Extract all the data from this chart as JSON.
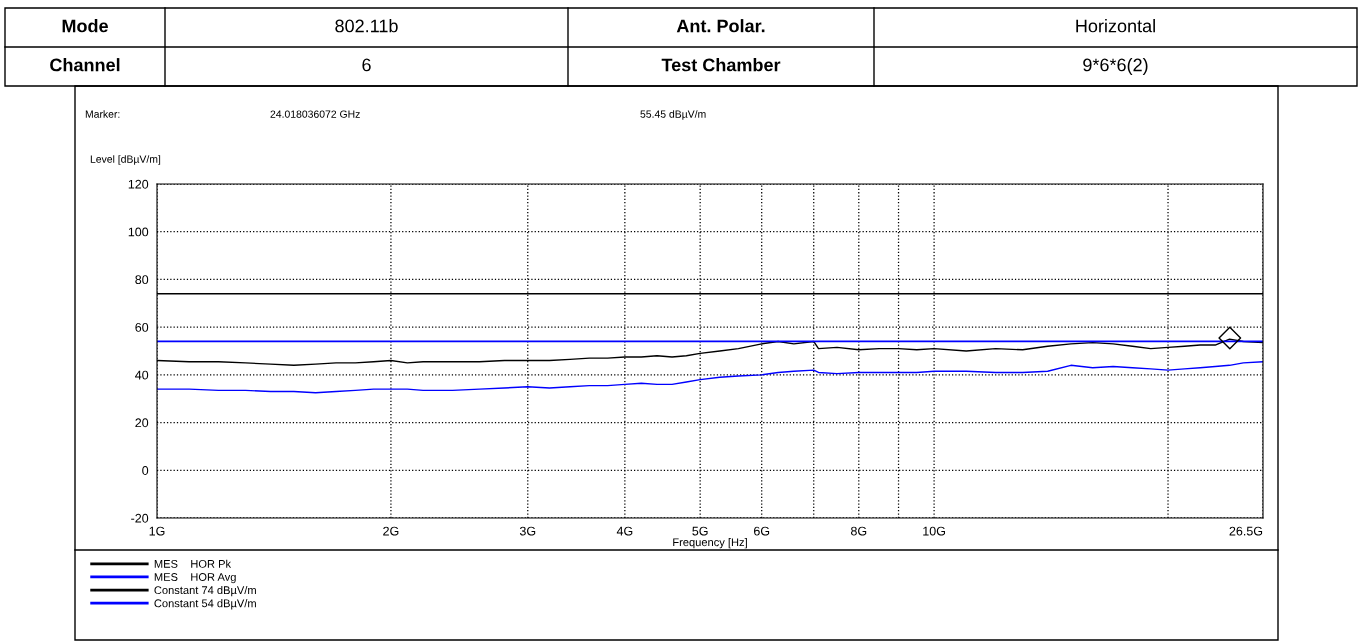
{
  "chart_data": {
    "type": "line",
    "xlabel": "Frequency [Hz]",
    "ylabel": "Level [dBµV/m]",
    "annotations": [
      "Mode",
      "802.11b",
      "Ant. Polar.",
      "Horizontal",
      "Channel",
      "6",
      "Test Chamber",
      "9*6*6(2)",
      "Marker:",
      "24.018036072 GHz",
      "55.45 dBµV/m"
    ],
    "log": "x",
    "xlim": [
      1,
      26.5
    ],
    "xticks": [
      {
        "value": 1,
        "label": "1G"
      },
      {
        "value": 2,
        "label": "2G"
      },
      {
        "value": 3,
        "label": "3G"
      },
      {
        "value": 4,
        "label": "4G"
      },
      {
        "value": 5,
        "label": "5G"
      },
      {
        "value": 6,
        "label": "6G"
      },
      {
        "value": 7,
        "label": null
      },
      {
        "value": 8,
        "label": "8G"
      },
      {
        "value": 9,
        "label": null
      },
      {
        "value": 10,
        "label": "10G"
      },
      {
        "value": 20,
        "label": null
      },
      {
        "value": 26.5,
        "label": "26.5G"
      }
    ],
    "ylim": [
      -20,
      120
    ],
    "yticks": [
      -20,
      0,
      20,
      40,
      60,
      80,
      100,
      120
    ],
    "grid": true,
    "legend": "bottom",
    "series": [
      {
        "name": "MES    HOR Pk",
        "color": "#000000",
        "x": [
          1,
          1.1,
          1.2,
          1.3,
          1.4,
          1.5,
          1.6,
          1.7,
          1.8,
          1.9,
          2.0,
          2.1,
          2.2,
          2.4,
          2.6,
          2.8,
          3.0,
          3.2,
          3.4,
          3.6,
          3.8,
          4.0,
          4.2,
          4.4,
          4.6,
          4.8,
          5.0,
          5.3,
          5.6,
          6.0,
          6.3,
          6.6,
          7.0,
          7.1,
          7.5,
          8.0,
          8.5,
          9.0,
          9.5,
          10,
          11,
          12,
          13,
          14,
          15,
          16,
          17,
          18,
          19,
          20,
          21,
          22,
          23,
          24,
          25,
          26.5
        ],
        "values": [
          46,
          45.5,
          45.5,
          45,
          44.5,
          44,
          44.5,
          45,
          45,
          45.5,
          46,
          45,
          45.5,
          45.5,
          45.5,
          46,
          46,
          46,
          46.5,
          47,
          47,
          47.5,
          47.5,
          48,
          47.5,
          48,
          49,
          50,
          51,
          53,
          54,
          53,
          54,
          51,
          51.5,
          50.5,
          51,
          51,
          50.5,
          51,
          50,
          51,
          50.5,
          52,
          53,
          53.5,
          53,
          52,
          51,
          51.5,
          52,
          52.5,
          52.5,
          55,
          54,
          53.5
        ]
      },
      {
        "name": "MES    HOR Avg",
        "color": "#0000ff",
        "x": [
          1,
          1.1,
          1.2,
          1.3,
          1.4,
          1.5,
          1.6,
          1.7,
          1.8,
          1.9,
          2.0,
          2.1,
          2.2,
          2.4,
          2.6,
          2.8,
          3.0,
          3.2,
          3.4,
          3.6,
          3.8,
          4.0,
          4.2,
          4.4,
          4.6,
          4.8,
          5.0,
          5.3,
          5.6,
          6.0,
          6.3,
          6.6,
          7.0,
          7.1,
          7.5,
          8.0,
          8.5,
          9.0,
          9.5,
          10,
          11,
          12,
          13,
          14,
          15,
          16,
          17,
          18,
          19,
          20,
          21,
          22,
          23,
          24,
          25,
          26.5
        ],
        "values": [
          34,
          34,
          33.5,
          33.5,
          33,
          33,
          32.5,
          33,
          33.5,
          34,
          34,
          34,
          33.5,
          33.5,
          34,
          34.5,
          35,
          34.5,
          35,
          35.5,
          35.5,
          36,
          36.5,
          36,
          36,
          37,
          38,
          39,
          39.5,
          40,
          41,
          41.5,
          42,
          41,
          40.5,
          41,
          41,
          41,
          41,
          41.5,
          41.5,
          41,
          41,
          41.5,
          44,
          43,
          43.5,
          43,
          42.5,
          42,
          42.5,
          43,
          43.5,
          44,
          45,
          45.5
        ]
      },
      {
        "type": "scatter",
        "marker": "diamond",
        "color": "#000000",
        "x": [
          24.018036072
        ],
        "values": [
          55.45
        ]
      }
    ],
    "ref_lines": [
      {
        "axis": "y",
        "value": 74,
        "label": "Constant 74 dBµV/m",
        "color": "#000000"
      },
      {
        "axis": "y",
        "value": 54,
        "label": "Constant 54 dBµV/m",
        "color": "#0000ff"
      }
    ]
  }
}
